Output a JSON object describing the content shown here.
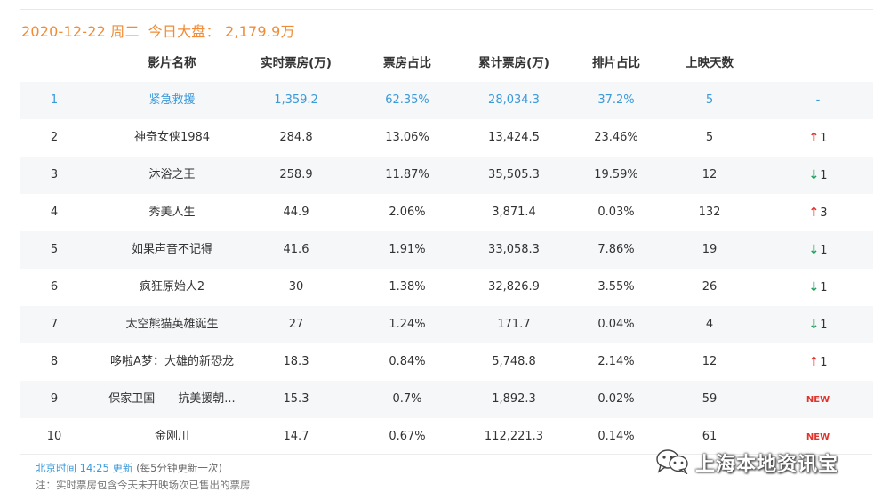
{
  "header": {
    "date": "2020-12-22 周二",
    "summary_label": "今日大盘：",
    "summary_value": "2,179.9万"
  },
  "table": {
    "columns": [
      "影片名称",
      "实时票房(万)",
      "票房占比",
      "累计票房(万)",
      "排片占比",
      "上映天数"
    ],
    "rows": [
      {
        "rank": "1",
        "name": "紧急救援",
        "realtime": "1,359.2",
        "share": "62.35%",
        "total": "28,034.3",
        "schedule": "37.2%",
        "days": "5",
        "trend": "dash",
        "trend_text": "-"
      },
      {
        "rank": "2",
        "name": "神奇女侠1984",
        "realtime": "284.8",
        "share": "13.06%",
        "total": "13,424.5",
        "schedule": "23.46%",
        "days": "5",
        "trend": "up",
        "trend_text": "1"
      },
      {
        "rank": "3",
        "name": "沐浴之王",
        "realtime": "258.9",
        "share": "11.87%",
        "total": "35,505.3",
        "schedule": "19.59%",
        "days": "12",
        "trend": "down",
        "trend_text": "1"
      },
      {
        "rank": "4",
        "name": "秀美人生",
        "realtime": "44.9",
        "share": "2.06%",
        "total": "3,871.4",
        "schedule": "0.03%",
        "days": "132",
        "trend": "up",
        "trend_text": "3"
      },
      {
        "rank": "5",
        "name": "如果声音不记得",
        "realtime": "41.6",
        "share": "1.91%",
        "total": "33,058.3",
        "schedule": "7.86%",
        "days": "19",
        "trend": "down",
        "trend_text": "1"
      },
      {
        "rank": "6",
        "name": "疯狂原始人2",
        "realtime": "30",
        "share": "1.38%",
        "total": "32,826.9",
        "schedule": "3.55%",
        "days": "26",
        "trend": "down",
        "trend_text": "1"
      },
      {
        "rank": "7",
        "name": "太空熊猫英雄诞生",
        "realtime": "27",
        "share": "1.24%",
        "total": "171.7",
        "schedule": "0.04%",
        "days": "4",
        "trend": "down",
        "trend_text": "1"
      },
      {
        "rank": "8",
        "name": "哆啦A梦：大雄的新恐龙",
        "realtime": "18.3",
        "share": "0.84%",
        "total": "5,748.8",
        "schedule": "2.14%",
        "days": "12",
        "trend": "up",
        "trend_text": "1"
      },
      {
        "rank": "9",
        "name": "保家卫国——抗美援朝...",
        "realtime": "15.3",
        "share": "0.7%",
        "total": "1,892.3",
        "schedule": "0.02%",
        "days": "59",
        "trend": "new",
        "trend_text": "NEW"
      },
      {
        "rank": "10",
        "name": "金刚川",
        "realtime": "14.7",
        "share": "0.67%",
        "total": "112,221.3",
        "schedule": "0.14%",
        "days": "61",
        "trend": "new",
        "trend_text": "NEW"
      }
    ]
  },
  "footer": {
    "update_link": "北京时间 14:25 更新",
    "update_note": "(每5分钟更新一次)",
    "note": "注：实时票房包含今天未开映场次已售出的票房"
  },
  "watermark": {
    "icon": "wechat-icon",
    "text": "上海本地资讯宝"
  },
  "colors": {
    "accent_orange": "#f08c36",
    "link_blue": "#3b9ad9",
    "up_red": "#e0342c",
    "down_green": "#1ea05a",
    "row_shade": "#f5f7f9"
  }
}
